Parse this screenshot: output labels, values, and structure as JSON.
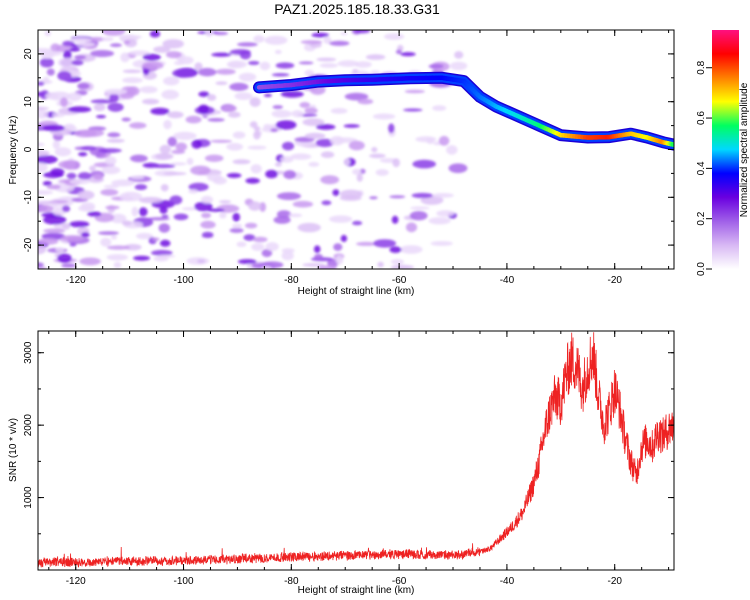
{
  "title": "PAZ1.2025.185.18.33.G31",
  "chart_data": [
    {
      "type": "heatmap",
      "xlabel": "Height of straight line (km)",
      "ylabel": "Frequency (Hz)",
      "xlim": [
        -127,
        -9
      ],
      "ylim": [
        -25,
        25
      ],
      "x_ticks": [
        -120,
        -100,
        -80,
        -60,
        -40,
        -20
      ],
      "y_ticks": [
        -20,
        -10,
        0,
        10,
        20
      ],
      "colorbar": {
        "label": "Normalized spectral amplitude",
        "range": [
          0,
          0.95
        ],
        "ticks": [
          0.0,
          0.2,
          0.4,
          0.6,
          0.8
        ],
        "colormap": [
          "#ffffff",
          "#d8b8f4",
          "#a060e8",
          "#6a00e0",
          "#0000ff",
          "#00d8ff",
          "#00ff60",
          "#ffff00",
          "#ff8000",
          "#ff0000",
          "#ff1080"
        ]
      },
      "ridge": [
        {
          "x": -86,
          "y": 13.0,
          "amp": 0.22
        },
        {
          "x": -80,
          "y": 13.5,
          "amp": 0.25
        },
        {
          "x": -75,
          "y": 14.2,
          "amp": 0.28
        },
        {
          "x": -70,
          "y": 14.5,
          "amp": 0.32
        },
        {
          "x": -65,
          "y": 14.6,
          "amp": 0.35
        },
        {
          "x": -58,
          "y": 14.9,
          "amp": 0.38
        },
        {
          "x": -52,
          "y": 15.0,
          "amp": 0.4
        },
        {
          "x": -48,
          "y": 14.3,
          "amp": 0.42
        },
        {
          "x": -45,
          "y": 11.0,
          "amp": 0.45
        },
        {
          "x": -42,
          "y": 9.0,
          "amp": 0.48
        },
        {
          "x": -38,
          "y": 7.0,
          "amp": 0.52
        },
        {
          "x": -34,
          "y": 5.0,
          "amp": 0.58
        },
        {
          "x": -30,
          "y": 3.0,
          "amp": 0.72
        },
        {
          "x": -25,
          "y": 2.5,
          "amp": 0.85
        },
        {
          "x": -21,
          "y": 2.6,
          "amp": 0.88
        },
        {
          "x": -17,
          "y": 3.3,
          "amp": 0.75
        },
        {
          "x": -14,
          "y": 2.5,
          "amp": 0.7
        },
        {
          "x": -11,
          "y": 1.5,
          "amp": 0.8
        },
        {
          "x": -9,
          "y": 1.0,
          "amp": 0.6
        }
      ],
      "noise_extent_x": [
        -127,
        -48
      ]
    },
    {
      "type": "line",
      "xlabel": "Height of straight line (km)",
      "ylabel": "SNR (10 * v/v)",
      "xlim": [
        -127,
        -9
      ],
      "ylim": [
        0,
        3300
      ],
      "x_ticks": [
        -120,
        -100,
        -80,
        -60,
        -40,
        -20
      ],
      "y_ticks": [
        1000,
        2000,
        3000
      ],
      "color": "#ee2222",
      "series": [
        {
          "x": [
            -127,
            -120,
            -110,
            -100,
            -90,
            -80,
            -70,
            -60,
            -55,
            -50,
            -45,
            -43,
            -41,
            -39,
            -37,
            -35,
            -34,
            -33,
            -32,
            -31,
            -30,
            -29,
            -28,
            -27,
            -26,
            -25,
            -24,
            -23,
            -22,
            -21,
            -20,
            -19,
            -18,
            -17,
            -16,
            -15,
            -14,
            -13,
            -12,
            -11,
            -10,
            -9
          ],
          "y": [
            100,
            110,
            120,
            130,
            150,
            180,
            200,
            220,
            210,
            200,
            250,
            300,
            450,
            600,
            800,
            1200,
            1500,
            1900,
            2200,
            2400,
            2300,
            2700,
            2900,
            2800,
            2500,
            2800,
            3000,
            2400,
            2000,
            2200,
            2500,
            2200,
            1800,
            1500,
            1300,
            1700,
            1800,
            1700,
            1900,
            1850,
            1950,
            2000
          ]
        }
      ]
    }
  ]
}
